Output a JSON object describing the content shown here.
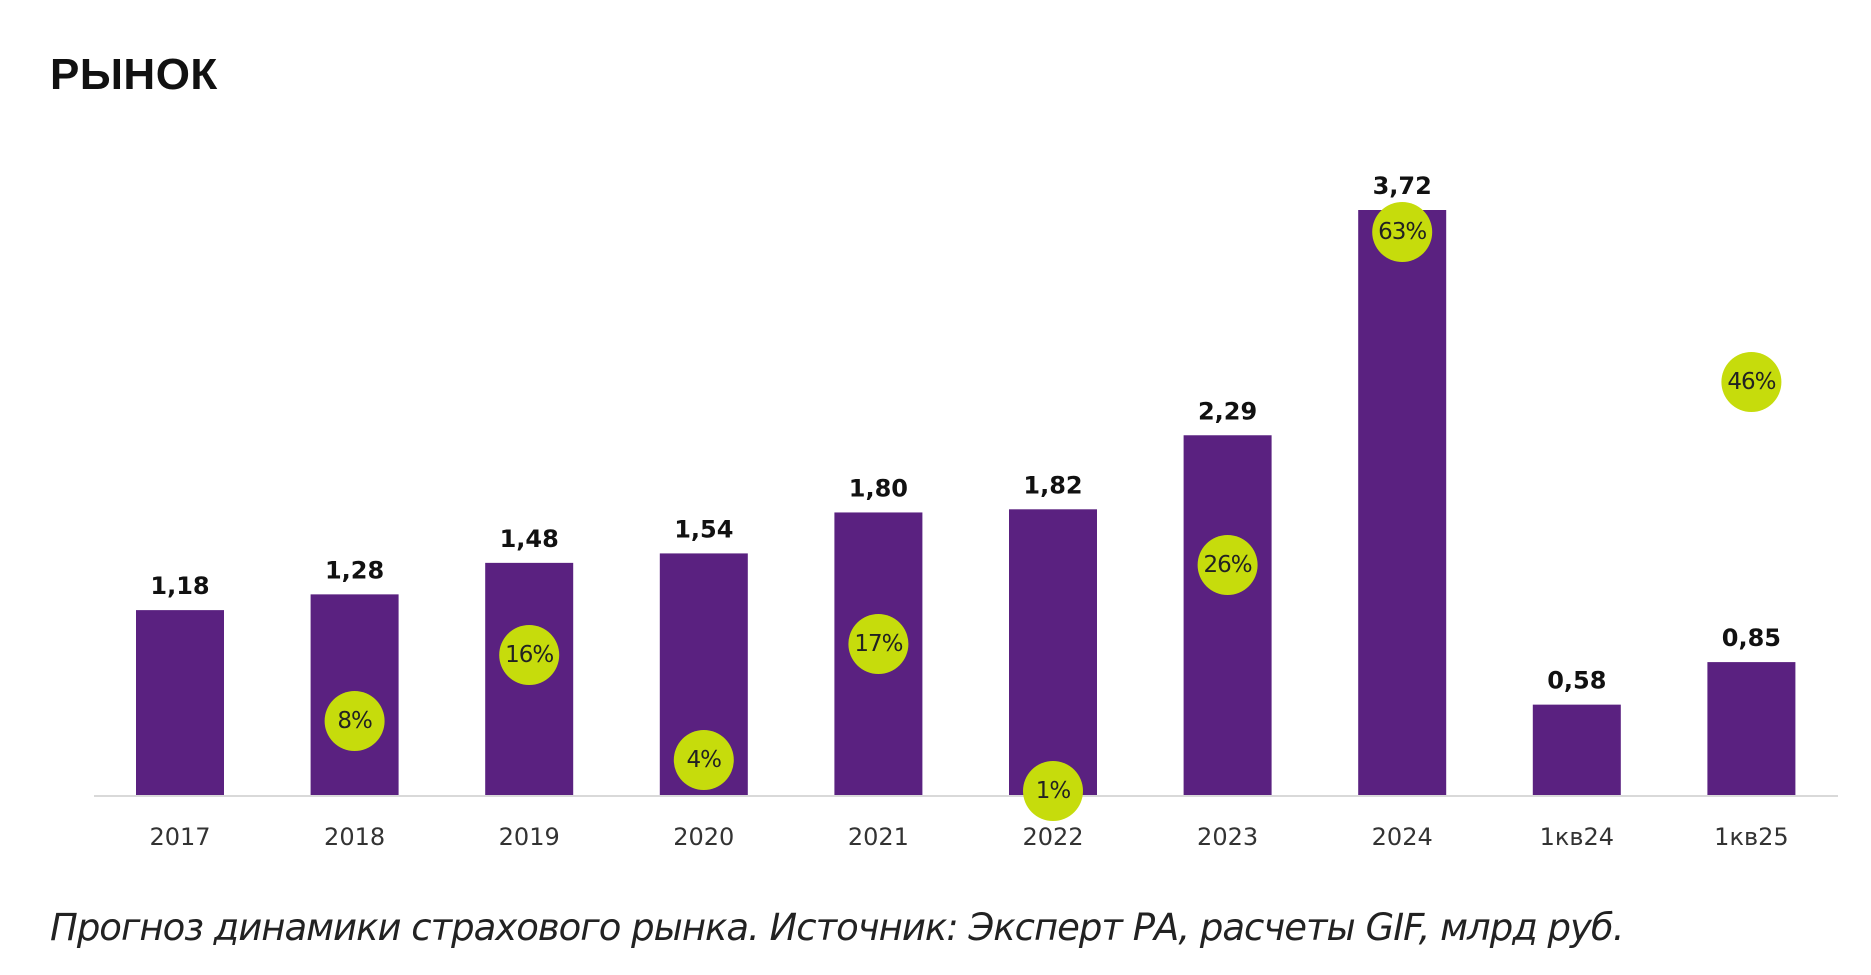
{
  "chart_data": {
    "type": "bar",
    "title": "РЫНОК",
    "caption": "Прогноз динамики страхового рынка. Источник: Эксперт РА, расчеты GIF, млрд руб.",
    "categories": [
      "2017",
      "2018",
      "2019",
      "2020",
      "2021",
      "2022",
      "2023",
      "2024",
      "1кв24",
      "1кв25"
    ],
    "values": [
      1.18,
      1.28,
      1.48,
      1.54,
      1.8,
      1.82,
      2.29,
      3.72,
      0.58,
      0.85
    ],
    "value_labels": [
      "1,18",
      "1,28",
      "1,48",
      "1,54",
      "1,80",
      "1,82",
      "2,29",
      "3,72",
      "0,58",
      "0,85"
    ],
    "growth_labels": [
      "",
      "8%",
      "16%",
      "4%",
      "17%",
      "1%",
      "26%",
      "63%",
      "",
      "46%"
    ],
    "xlabel": "",
    "ylabel": "",
    "ylim": [
      0,
      3.72
    ],
    "grid": false,
    "colors": {
      "bar": "#5a2180",
      "growth_badge": "#c6dc0c",
      "axis": "#d9d9d9"
    }
  }
}
